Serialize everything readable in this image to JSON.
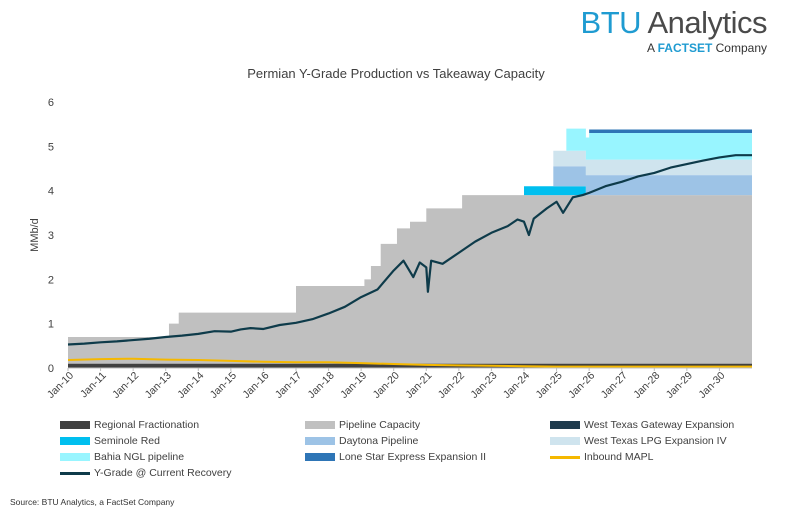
{
  "brand": {
    "name_part1": "BTU",
    "name_part2": " Analytics",
    "tagline_prefix": "A ",
    "tagline_brand": "FACTSET",
    "tagline_suffix": " Company"
  },
  "source": "Source: BTU Analytics, a FactSet Company",
  "chart_data": {
    "type": "area",
    "title": "Permian Y-Grade Production vs Takeaway Capacity",
    "xlabel": "",
    "ylabel": "MMb/d",
    "ylim": [
      0,
      6
    ],
    "yticks": [
      0,
      1,
      2,
      3,
      4,
      5,
      6
    ],
    "xticks": [
      "Jan-10",
      "Jan-11",
      "Jan-12",
      "Jan-13",
      "Jan-14",
      "Jan-15",
      "Jan-16",
      "Jan-17",
      "Jan-18",
      "Jan-19",
      "Jan-20",
      "Jan-21",
      "Jan-22",
      "Jan-23",
      "Jan-24",
      "Jan-25",
      "Jan-26",
      "Jan-27",
      "Jan-28",
      "Jan-29",
      "Jan-30"
    ],
    "xrange": [
      2010.0,
      2031.0
    ],
    "grid": false,
    "legend_position": "bottom",
    "stack_series": [
      {
        "name": "Regional Fractionation",
        "color": "#404040",
        "points": [
          [
            2010.0,
            0.1
          ],
          [
            2031.0,
            0.1
          ]
        ]
      },
      {
        "name": "Pipeline Capacity",
        "color": "#c0c0c0",
        "points": [
          [
            2010.0,
            0.6
          ],
          [
            2013.1,
            0.6
          ],
          [
            2013.1,
            0.9
          ],
          [
            2013.4,
            0.9
          ],
          [
            2013.4,
            1.15
          ],
          [
            2017.0,
            1.15
          ],
          [
            2017.0,
            1.75
          ],
          [
            2019.1,
            1.75
          ],
          [
            2019.1,
            1.9
          ],
          [
            2019.3,
            1.9
          ],
          [
            2019.3,
            2.2
          ],
          [
            2019.6,
            2.2
          ],
          [
            2019.6,
            2.7
          ],
          [
            2020.1,
            2.7
          ],
          [
            2020.1,
            3.05
          ],
          [
            2020.5,
            3.05
          ],
          [
            2020.5,
            3.2
          ],
          [
            2021.0,
            3.2
          ],
          [
            2021.0,
            3.5
          ],
          [
            2022.1,
            3.5
          ],
          [
            2022.1,
            3.8
          ],
          [
            2031.0,
            3.8
          ]
        ]
      },
      {
        "name": "West Texas Gateway Expansion",
        "color": "#1f3b4d",
        "points": [
          [
            2010.0,
            0
          ],
          [
            2031.0,
            0
          ]
        ]
      },
      {
        "name": "Seminole Red",
        "color": "#00bfef",
        "points": [
          [
            2010.0,
            0
          ],
          [
            2024.0,
            0
          ],
          [
            2024.0,
            0.2
          ],
          [
            2025.9,
            0.2
          ],
          [
            2025.9,
            0
          ],
          [
            2031.0,
            0
          ]
        ]
      },
      {
        "name": "Daytona Pipeline",
        "color": "#9dc3e6",
        "points": [
          [
            2010.0,
            0
          ],
          [
            2024.9,
            0
          ],
          [
            2024.9,
            0.45
          ],
          [
            2031.0,
            0.45
          ]
        ]
      },
      {
        "name": "West Texas LPG Expansion IV",
        "color": "#cfe4ee",
        "points": [
          [
            2010.0,
            0
          ],
          [
            2024.9,
            0
          ],
          [
            2024.9,
            0.35
          ],
          [
            2031.0,
            0.35
          ]
        ]
      },
      {
        "name": "Bahia NGL pipeline",
        "color": "#98f5ff",
        "points": [
          [
            2010.0,
            0
          ],
          [
            2025.3,
            0
          ],
          [
            2025.3,
            0.5
          ],
          [
            2026.0,
            0.5
          ],
          [
            2026.0,
            0.6
          ],
          [
            2031.0,
            0.6
          ]
        ]
      },
      {
        "name": "Lone Star Express Expansion II",
        "color": "#2e75b6",
        "points": [
          [
            2010.0,
            0
          ],
          [
            2026.0,
            0
          ],
          [
            2026.0,
            0.08
          ],
          [
            2031.0,
            0.08
          ]
        ]
      }
    ],
    "line_series": [
      {
        "name": "Inbound MAPL",
        "color": "#f5b800",
        "points": [
          [
            2010.0,
            0.18
          ],
          [
            2011.0,
            0.2
          ],
          [
            2012.0,
            0.21
          ],
          [
            2013.0,
            0.19
          ],
          [
            2014.0,
            0.18
          ],
          [
            2015.0,
            0.16
          ],
          [
            2016.0,
            0.14
          ],
          [
            2017.0,
            0.13
          ],
          [
            2018.0,
            0.13
          ],
          [
            2019.0,
            0.11
          ],
          [
            2020.0,
            0.09
          ],
          [
            2021.0,
            0.07
          ],
          [
            2022.0,
            0.06
          ],
          [
            2023.0,
            0.05
          ],
          [
            2024.0,
            0.04
          ],
          [
            2025.0,
            0.03
          ],
          [
            2026.0,
            0.03
          ],
          [
            2031.0,
            0.03
          ]
        ]
      },
      {
        "name": "Y-Grade @ Current Recovery",
        "color": "#0e3b4a",
        "points": [
          [
            2010.0,
            0.53
          ],
          [
            2010.5,
            0.55
          ],
          [
            2011.0,
            0.58
          ],
          [
            2011.5,
            0.6
          ],
          [
            2012.0,
            0.63
          ],
          [
            2012.5,
            0.66
          ],
          [
            2013.0,
            0.7
          ],
          [
            2013.5,
            0.73
          ],
          [
            2014.0,
            0.77
          ],
          [
            2014.5,
            0.83
          ],
          [
            2015.0,
            0.82
          ],
          [
            2015.3,
            0.87
          ],
          [
            2015.6,
            0.9
          ],
          [
            2016.0,
            0.88
          ],
          [
            2016.5,
            0.97
          ],
          [
            2017.0,
            1.02
          ],
          [
            2017.5,
            1.1
          ],
          [
            2018.0,
            1.23
          ],
          [
            2018.5,
            1.38
          ],
          [
            2019.0,
            1.6
          ],
          [
            2019.5,
            1.77
          ],
          [
            2020.0,
            2.2
          ],
          [
            2020.3,
            2.42
          ],
          [
            2020.6,
            2.05
          ],
          [
            2020.8,
            2.38
          ],
          [
            2021.0,
            2.27
          ],
          [
            2021.05,
            1.72
          ],
          [
            2021.15,
            2.42
          ],
          [
            2021.5,
            2.35
          ],
          [
            2022.0,
            2.6
          ],
          [
            2022.5,
            2.85
          ],
          [
            2023.0,
            3.05
          ],
          [
            2023.5,
            3.2
          ],
          [
            2023.8,
            3.35
          ],
          [
            2024.0,
            3.3
          ],
          [
            2024.15,
            3.0
          ],
          [
            2024.3,
            3.37
          ],
          [
            2024.7,
            3.6
          ],
          [
            2025.0,
            3.75
          ],
          [
            2025.2,
            3.5
          ],
          [
            2025.5,
            3.85
          ],
          [
            2025.8,
            3.9
          ],
          [
            2026.0,
            3.95
          ],
          [
            2026.5,
            4.1
          ],
          [
            2027.0,
            4.2
          ],
          [
            2027.5,
            4.32
          ],
          [
            2028.0,
            4.4
          ],
          [
            2028.5,
            4.52
          ],
          [
            2029.0,
            4.6
          ],
          [
            2029.5,
            4.68
          ],
          [
            2030.0,
            4.75
          ],
          [
            2030.5,
            4.8
          ],
          [
            2031.0,
            4.8
          ]
        ]
      }
    ],
    "legend": [
      {
        "name": "Regional Fractionation",
        "color": "#404040",
        "kind": "box"
      },
      {
        "name": "Pipeline Capacity",
        "color": "#c0c0c0",
        "kind": "box"
      },
      {
        "name": "West Texas Gateway Expansion",
        "color": "#1f3b4d",
        "kind": "box"
      },
      {
        "name": "Seminole Red",
        "color": "#00bfef",
        "kind": "box"
      },
      {
        "name": "Daytona Pipeline",
        "color": "#9dc3e6",
        "kind": "box"
      },
      {
        "name": "West Texas LPG Expansion IV",
        "color": "#cfe4ee",
        "kind": "box"
      },
      {
        "name": "Bahia NGL pipeline",
        "color": "#98f5ff",
        "kind": "box"
      },
      {
        "name": "Lone Star Express Expansion II",
        "color": "#2e75b6",
        "kind": "box"
      },
      {
        "name": "Inbound MAPL",
        "color": "#f5b800",
        "kind": "line"
      },
      {
        "name": "Y-Grade @ Current Recovery",
        "color": "#0e3b4a",
        "kind": "line"
      }
    ]
  }
}
